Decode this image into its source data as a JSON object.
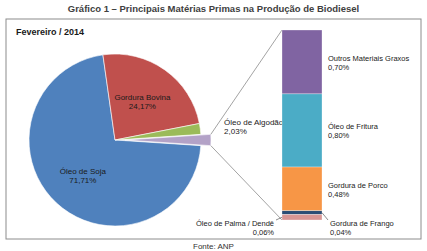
{
  "chart_data": [
    {
      "type": "pie",
      "title": "Gráfico 1 – Principais Matérias Primas na Produção de Biodiesel",
      "subtitle": "Fevereiro / 2014",
      "source": "Fonte: ANP",
      "categories": [
        "Óleo de Soja",
        "Gordura Bovina",
        "Óleo de Algodão",
        null
      ],
      "values": [
        71.71,
        24.17,
        2.03,
        2.09
      ],
      "value_labels": [
        "71,71%",
        "24,17%",
        "2,03%",
        null
      ],
      "colors": [
        "#4f81bd",
        "#c0504d",
        "#9bbb59",
        "#b3a2c7"
      ],
      "data_labels": true
    },
    {
      "type": "bar",
      "stacked": true,
      "data_labels": true,
      "tick_labels": false,
      "categories": [
        null
      ],
      "series": [
        {
          "name": "Outros Materiais Graxos",
          "color": "#8064a2",
          "values": [
            0.7
          ],
          "value_labels": [
            "0,70%"
          ]
        },
        {
          "name": "Óleo de Fritura",
          "color": "#4bacc6",
          "values": [
            0.8
          ],
          "value_labels": [
            "0,80%"
          ]
        },
        {
          "name": "Gordura de Porco",
          "color": "#f79646",
          "values": [
            0.48
          ],
          "value_labels": [
            "0,48%"
          ]
        },
        {
          "name": "Gordura de Frango",
          "color": "#2c4d75",
          "values": [
            0.04
          ],
          "value_labels": [
            "0,04%"
          ]
        },
        {
          "name": "Óleo de Palma / Dendê",
          "color": "#d99694",
          "values": [
            0.06
          ],
          "value_labels": [
            "0,06%"
          ]
        }
      ]
    }
  ]
}
